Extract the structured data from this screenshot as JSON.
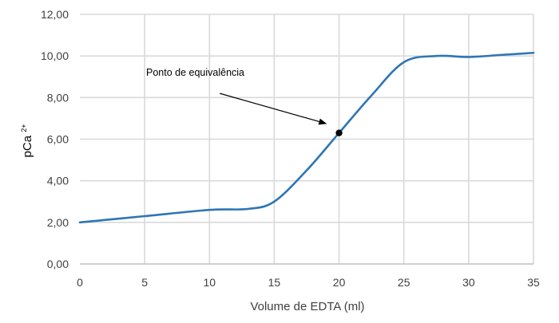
{
  "chart_data": {
    "type": "line",
    "xlabel": "Volume de EDTA (ml)",
    "ylabel_base": "pCa",
    "ylabel_sup": "2+",
    "xlim": [
      0,
      35
    ],
    "ylim": [
      0,
      12
    ],
    "x_ticks": [
      0,
      5,
      10,
      15,
      20,
      25,
      30,
      35
    ],
    "x_tick_labels": [
      "0",
      "5",
      "10",
      "15",
      "20",
      "25",
      "30",
      "35"
    ],
    "y_ticks": [
      0,
      2,
      4,
      6,
      8,
      10,
      12
    ],
    "y_tick_labels": [
      "0,00",
      "2,00",
      "4,00",
      "6,00",
      "8,00",
      "10,00",
      "12,00"
    ],
    "grid": true,
    "series": [
      {
        "color": "#2e75b6",
        "x": [
          0,
          5,
          10,
          13,
          15,
          17.5,
          20,
          22.5,
          25,
          27.5,
          30,
          32.5,
          35
        ],
        "y": [
          2.0,
          2.3,
          2.6,
          2.65,
          3.0,
          4.5,
          6.3,
          8.1,
          9.7,
          10.0,
          9.95,
          10.05,
          10.15
        ]
      }
    ],
    "annotation": {
      "text": "Ponto de equivalência",
      "point_x": 20,
      "point_y": 6.3,
      "arrow_from_x": 10.8,
      "arrow_from_y": 8.2,
      "arrow_to_x": 19.0,
      "arrow_to_y": 6.75
    }
  }
}
